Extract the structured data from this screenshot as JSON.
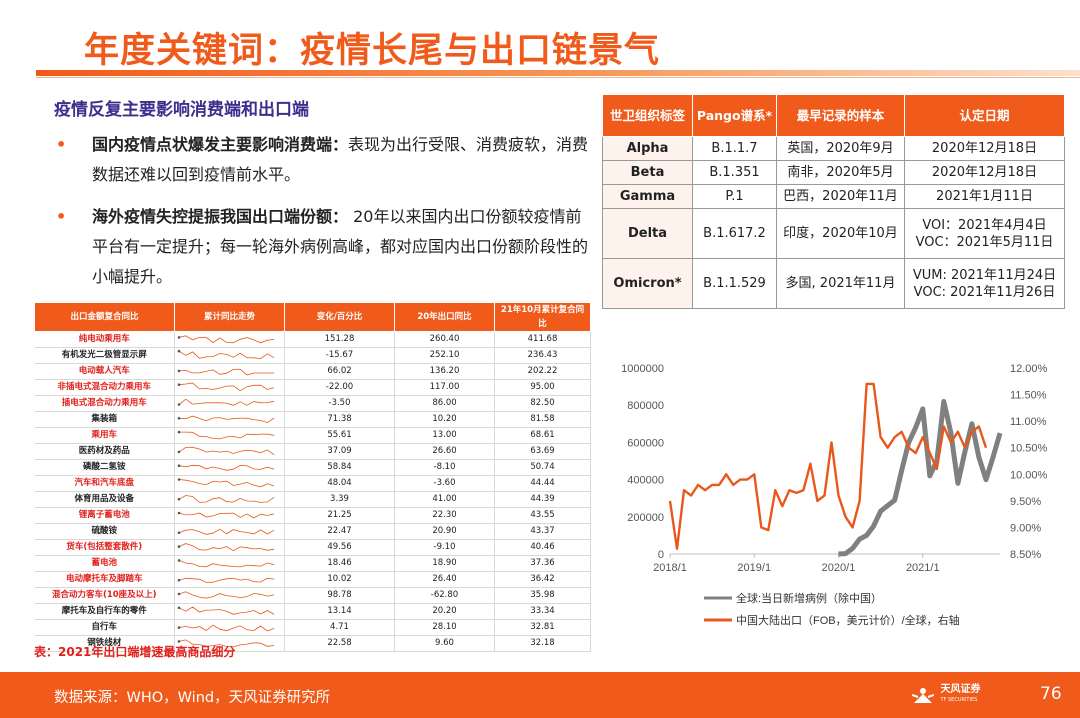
{
  "title": "年度关键词：疫情长尾与出口链景气",
  "subhead": "疫情反复主要影响消费端和出口端",
  "bullets": [
    {
      "bold": "国内疫情点状爆发主要影响消费端：",
      "text": "表现为出行受限、消费疲软，消费数据还难以回到疫情前水平。"
    },
    {
      "bold": "海外疫情失控提振我国出口端份额：",
      "text": " 20年以来国内出口份额较疫情前平台有一定提升；每一轮海外病例高峰，都对应国内出口份额阶段性的小幅提升。"
    }
  ],
  "product_table": {
    "headers": [
      "出口金额复合同比",
      "累计同比走势",
      "变化/百分比",
      "20年出口同比",
      "21年10月累计复合同比"
    ],
    "rows": [
      {
        "name": "纯电动乘用车",
        "hl": true,
        "change": "151.28",
        "y20": "260.40",
        "y21": "411.68"
      },
      {
        "name": "有机发光二极管显示屏",
        "hl": false,
        "change": "-15.67",
        "y20": "252.10",
        "y21": "236.43"
      },
      {
        "name": "电动载人汽车",
        "hl": true,
        "change": "66.02",
        "y20": "136.20",
        "y21": "202.22"
      },
      {
        "name": "非插电式混合动力乘用车",
        "hl": true,
        "change": "-22.00",
        "y20": "117.00",
        "y21": "95.00"
      },
      {
        "name": "插电式混合动力乘用车",
        "hl": true,
        "change": "-3.50",
        "y20": "86.00",
        "y21": "82.50"
      },
      {
        "name": "集装箱",
        "hl": false,
        "change": "71.38",
        "y20": "10.20",
        "y21": "81.58"
      },
      {
        "name": "乘用车",
        "hl": true,
        "change": "55.61",
        "y20": "13.00",
        "y21": "68.61"
      },
      {
        "name": "医药材及药品",
        "hl": false,
        "change": "37.09",
        "y20": "26.60",
        "y21": "63.69"
      },
      {
        "name": "磷酸二氢铵",
        "hl": false,
        "change": "58.84",
        "y20": "-8.10",
        "y21": "50.74"
      },
      {
        "name": "汽车和汽车底盘",
        "hl": true,
        "change": "48.04",
        "y20": "-3.60",
        "y21": "44.44"
      },
      {
        "name": "体育用品及设备",
        "hl": false,
        "change": "3.39",
        "y20": "41.00",
        "y21": "44.39"
      },
      {
        "name": "锂离子蓄电池",
        "hl": true,
        "change": "21.25",
        "y20": "22.30",
        "y21": "43.55"
      },
      {
        "name": "硫酸铵",
        "hl": false,
        "change": "22.47",
        "y20": "20.90",
        "y21": "43.37"
      },
      {
        "name": "货车(包括整套散件)",
        "hl": true,
        "change": "49.56",
        "y20": "-9.10",
        "y21": "40.46"
      },
      {
        "name": "蓄电池",
        "hl": true,
        "change": "18.46",
        "y20": "18.90",
        "y21": "37.36"
      },
      {
        "name": "电动摩托车及脚踏车",
        "hl": true,
        "change": "10.02",
        "y20": "26.40",
        "y21": "36.42"
      },
      {
        "name": "混合动力客车(10座及以上)",
        "hl": true,
        "change": "98.78",
        "y20": "-62.80",
        "y21": "35.98"
      },
      {
        "name": "摩托车及自行车的零件",
        "hl": false,
        "change": "13.14",
        "y20": "20.20",
        "y21": "33.34"
      },
      {
        "name": "自行车",
        "hl": false,
        "change": "4.71",
        "y20": "28.10",
        "y21": "32.81"
      },
      {
        "name": "钢铁线材",
        "hl": false,
        "change": "22.58",
        "y20": "9.60",
        "y21": "32.18"
      }
    ],
    "caption": "表：2021年出口端增速最高商品细分"
  },
  "variant_table": {
    "headers": [
      "世卫组织标签",
      "Pango谱系*",
      "最早记录的样本",
      "认定日期"
    ],
    "rows": [
      {
        "label": "Alpha",
        "pango": "B.1.1.7",
        "sample": "英国，2020年9月",
        "date": [
          "2020年12月18日"
        ]
      },
      {
        "label": "Beta",
        "pango": "B.1.351",
        "sample": "南非，2020年5月",
        "date": [
          "2020年12月18日"
        ]
      },
      {
        "label": "Gamma",
        "pango": "P.1",
        "sample": "巴西，2020年11月",
        "date": [
          "2021年1月11日"
        ]
      },
      {
        "label": "Delta",
        "pango": "B.1.617.2",
        "sample": "印度，2020年10月",
        "date": [
          "VOI：2021年4月4日",
          "VOC：2021年5月11日"
        ]
      },
      {
        "label": "Omicron*",
        "pango": "B.1.1.529",
        "sample": "多国, 2021年11月",
        "date": [
          "VUM: 2021年11月24日",
          "VOC: 2021年11月26日"
        ]
      }
    ]
  },
  "chart_data": {
    "type": "line",
    "title": "",
    "x_ticks": [
      "2018/1",
      "2019/1",
      "2020/1",
      "2021/1"
    ],
    "y_left_ticks": [
      "1000000",
      "800000",
      "600000",
      "400000",
      "200000",
      "0"
    ],
    "y_right_ticks": [
      "12.00%",
      "11.50%",
      "11.00%",
      "10.50%",
      "10.00%",
      "9.50%",
      "9.00%",
      "8.50%"
    ],
    "ylim_left": [
      0,
      1000000
    ],
    "ylim_right": [
      8.5,
      12.0
    ],
    "series": [
      {
        "name": "全球:当日新增病例（除中国）",
        "axis": "left",
        "color": "#808080",
        "x": [
          "2020/1",
          "2020/2",
          "2020/3",
          "2020/4",
          "2020/5",
          "2020/6",
          "2020/7",
          "2020/8",
          "2020/9",
          "2020/10",
          "2020/11",
          "2020/12",
          "2021/1",
          "2021/2",
          "2021/3",
          "2021/4",
          "2021/5",
          "2021/6",
          "2021/7",
          "2021/8",
          "2021/9",
          "2021/10",
          "2021/11",
          "2021/12"
        ],
        "values": [
          0,
          2000,
          30000,
          80000,
          100000,
          150000,
          230000,
          260000,
          290000,
          450000,
          600000,
          680000,
          780000,
          420000,
          500000,
          820000,
          650000,
          380000,
          550000,
          700000,
          520000,
          400000,
          520000,
          650000
        ]
      },
      {
        "name": "中国大陆出口（FOB，美元计价）/全球，右轴",
        "axis": "right",
        "color": "#e8581c",
        "x": [
          "2018/1",
          "2018/2",
          "2018/3",
          "2018/4",
          "2018/5",
          "2018/6",
          "2018/7",
          "2018/8",
          "2018/9",
          "2018/10",
          "2018/11",
          "2018/12",
          "2019/1",
          "2019/2",
          "2019/3",
          "2019/4",
          "2019/5",
          "2019/6",
          "2019/7",
          "2019/8",
          "2019/9",
          "2019/10",
          "2019/11",
          "2019/12",
          "2020/1",
          "2020/2",
          "2020/3",
          "2020/4",
          "2020/5",
          "2020/6",
          "2020/7",
          "2020/8",
          "2020/9",
          "2020/10",
          "2020/11",
          "2020/12",
          "2021/1",
          "2021/2",
          "2021/3",
          "2021/4",
          "2021/5",
          "2021/6",
          "2021/7",
          "2021/8",
          "2021/9",
          "2021/10"
        ],
        "values": [
          9.5,
          8.6,
          9.7,
          9.6,
          9.8,
          9.7,
          9.8,
          9.8,
          10.0,
          9.8,
          9.9,
          9.9,
          10.0,
          9.0,
          8.95,
          9.7,
          9.4,
          9.7,
          9.65,
          9.7,
          10.2,
          9.5,
          9.6,
          10.6,
          9.6,
          9.2,
          9.0,
          9.5,
          11.7,
          11.7,
          10.7,
          10.5,
          10.7,
          10.8,
          10.5,
          10.4,
          10.7,
          10.4,
          10.1,
          10.9,
          10.6,
          10.8,
          10.5,
          10.8,
          10.9,
          10.5
        ]
      }
    ]
  },
  "footer": {
    "source": "数据来源：WHO，Wind，天风证券研究所",
    "logo": "天风证券",
    "logo_sub": "TF SECURITIES",
    "page": "76"
  }
}
